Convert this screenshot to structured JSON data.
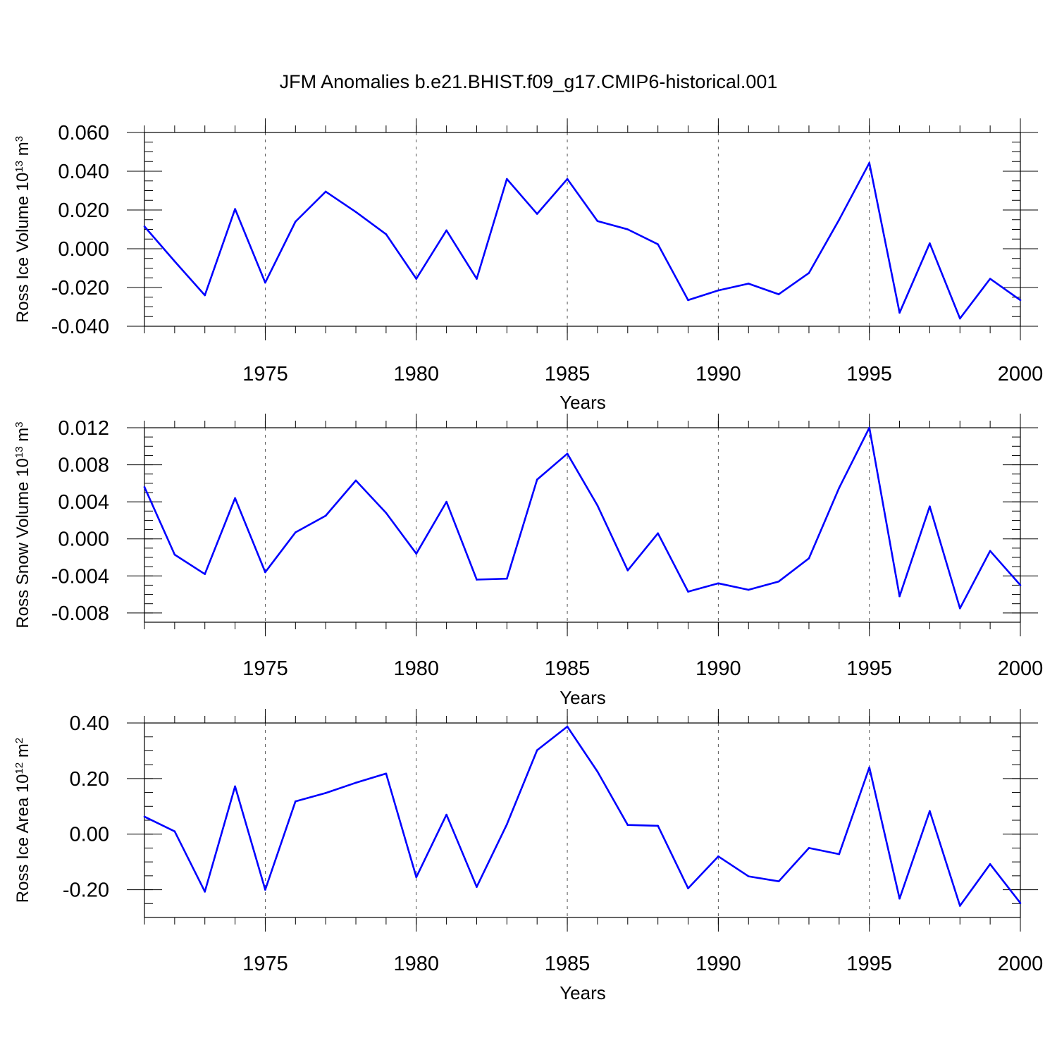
{
  "title": "JFM Anomalies b.e21.BHIST.f09_g17.CMIP6-historical.001",
  "chart_data": [
    {
      "type": "line",
      "title": "JFM Anomalies b.e21.BHIST.f09_g17.CMIP6-historical.001",
      "xlabel": "Years",
      "ylabel": "Ross Ice Volume 10¹³ m³",
      "ylabel_parts": {
        "main": "Ross Ice Volume 10",
        "sup1": "13",
        "unit": " m",
        "sup2": "3"
      },
      "xlim": [
        1971,
        2000
      ],
      "ylim": [
        -0.04,
        0.06
      ],
      "yticks": [
        -0.04,
        -0.02,
        0.0,
        0.02,
        0.04,
        0.06
      ],
      "ytick_labels": [
        "-0.040",
        "-0.020",
        "0.000",
        "0.020",
        "0.040",
        "0.060"
      ],
      "yminor_step": 0.005,
      "xticks": [
        1975,
        1980,
        1985,
        1990,
        1995,
        2000
      ],
      "xtick_labels": [
        "1975",
        "1980",
        "1985",
        "1990",
        "1995",
        "2000"
      ],
      "grid_x": [
        1975,
        1980,
        1985,
        1990,
        1995
      ],
      "color": "#0000ff",
      "x": [
        1971,
        1972,
        1973,
        1974,
        1975,
        1976,
        1977,
        1978,
        1979,
        1980,
        1981,
        1982,
        1983,
        1984,
        1985,
        1986,
        1987,
        1988,
        1989,
        1990,
        1991,
        1992,
        1993,
        1994,
        1995,
        1996,
        1997,
        1998,
        1999,
        2000
      ],
      "values": [
        0.0115,
        -0.0065,
        -0.024,
        0.0205,
        -0.0175,
        0.014,
        0.0295,
        0.019,
        0.0075,
        -0.0155,
        0.0095,
        -0.0155,
        0.036,
        0.018,
        0.036,
        0.0143,
        0.01,
        0.0023,
        -0.0265,
        -0.0215,
        -0.018,
        -0.0235,
        -0.0125,
        0.015,
        0.0443,
        -0.033,
        0.0028,
        -0.036,
        -0.0155,
        -0.0265
      ]
    },
    {
      "type": "line",
      "xlabel": "Years",
      "ylabel": "Ross Snow Volume 10¹³ m³",
      "ylabel_parts": {
        "main": "Ross Snow Volume 10",
        "sup1": "13",
        "unit": " m",
        "sup2": "3"
      },
      "xlim": [
        1971,
        2000
      ],
      "ylim": [
        -0.009,
        0.012
      ],
      "yticks": [
        -0.008,
        -0.004,
        0.0,
        0.004,
        0.008,
        0.012
      ],
      "ytick_labels": [
        "-0.008",
        "-0.004",
        "0.000",
        "0.004",
        "0.008",
        "0.012"
      ],
      "yminor_step": 0.001,
      "xticks": [
        1975,
        1980,
        1985,
        1990,
        1995,
        2000
      ],
      "xtick_labels": [
        "1975",
        "1980",
        "1985",
        "1990",
        "1995",
        "2000"
      ],
      "grid_x": [
        1975,
        1980,
        1985,
        1990,
        1995
      ],
      "color": "#0000ff",
      "x": [
        1971,
        1972,
        1973,
        1974,
        1975,
        1976,
        1977,
        1978,
        1979,
        1980,
        1981,
        1982,
        1983,
        1984,
        1985,
        1986,
        1987,
        1988,
        1989,
        1990,
        1991,
        1992,
        1993,
        1994,
        1995,
        1996,
        1997,
        1998,
        1999,
        2000
      ],
      "values": [
        0.0056,
        -0.0017,
        -0.0038,
        0.0044,
        -0.0036,
        0.0007,
        0.0025,
        0.0063,
        0.0028,
        -0.0016,
        0.004,
        -0.0044,
        -0.0043,
        0.0064,
        0.0092,
        0.0036,
        -0.0034,
        0.0006,
        -0.0057,
        -0.0048,
        -0.0055,
        -0.0046,
        -0.0021,
        0.0055,
        0.012,
        -0.0062,
        0.0035,
        -0.0075,
        -0.0013,
        -0.005
      ]
    },
    {
      "type": "line",
      "xlabel": "Years",
      "ylabel": "Ross Ice Area 10¹² m²",
      "ylabel_parts": {
        "main": "Ross Ice Area 10",
        "sup1": "12",
        "unit": " m",
        "sup2": "2"
      },
      "xlim": [
        1971,
        2000
      ],
      "ylim": [
        -0.3,
        0.4
      ],
      "yticks": [
        -0.2,
        0.0,
        0.2,
        0.4
      ],
      "ytick_labels": [
        "-0.20",
        "0.00",
        "0.20",
        "0.40"
      ],
      "yminor_step": 0.05,
      "xticks": [
        1975,
        1980,
        1985,
        1990,
        1995,
        2000
      ],
      "xtick_labels": [
        "1975",
        "1980",
        "1985",
        "1990",
        "1995",
        "2000"
      ],
      "grid_x": [
        1975,
        1980,
        1985,
        1990,
        1995
      ],
      "color": "#0000ff",
      "x": [
        1971,
        1972,
        1973,
        1974,
        1975,
        1976,
        1977,
        1978,
        1979,
        1980,
        1981,
        1982,
        1983,
        1984,
        1985,
        1986,
        1987,
        1988,
        1989,
        1990,
        1991,
        1992,
        1993,
        1994,
        1995,
        1996,
        1997,
        1998,
        1999,
        2000
      ],
      "values": [
        0.063,
        0.01,
        -0.207,
        0.172,
        -0.2,
        0.118,
        0.148,
        0.185,
        0.218,
        -0.155,
        0.07,
        -0.19,
        0.035,
        0.302,
        0.387,
        0.225,
        0.033,
        0.03,
        -0.195,
        -0.08,
        -0.152,
        -0.17,
        -0.05,
        -0.072,
        0.24,
        -0.232,
        0.083,
        -0.258,
        -0.108,
        -0.248
      ]
    }
  ]
}
